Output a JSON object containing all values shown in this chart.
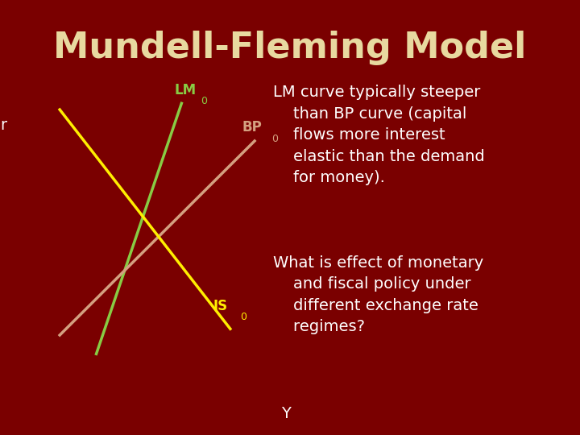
{
  "title": "Mundell-Fleming Model",
  "title_color": "#E8D9A0",
  "title_fontsize": 32,
  "bg_color": "#7A0000",
  "text_color": "#FFFFFF",
  "axis_color": "#FFFFFF",
  "r_label": "r",
  "y_label": "Y",
  "lm_label": "LM",
  "lm_sub": "0",
  "bp_label": "BP",
  "bp_sub": "0",
  "is_label": "IS",
  "is_sub": "0",
  "lm_color": "#88CC44",
  "bp_color": "#D4A080",
  "is_color": "#FFEE00",
  "label_fontsize": 13,
  "body_fontsize": 14,
  "text1": "LM curve typically steeper\n    than BP curve (capital\n    flows more interest\n    elastic than the demand\n    for money).",
  "text2": "What is effect of monetary\n    and fiscal policy under\n    different exchange rate\n    regimes?"
}
